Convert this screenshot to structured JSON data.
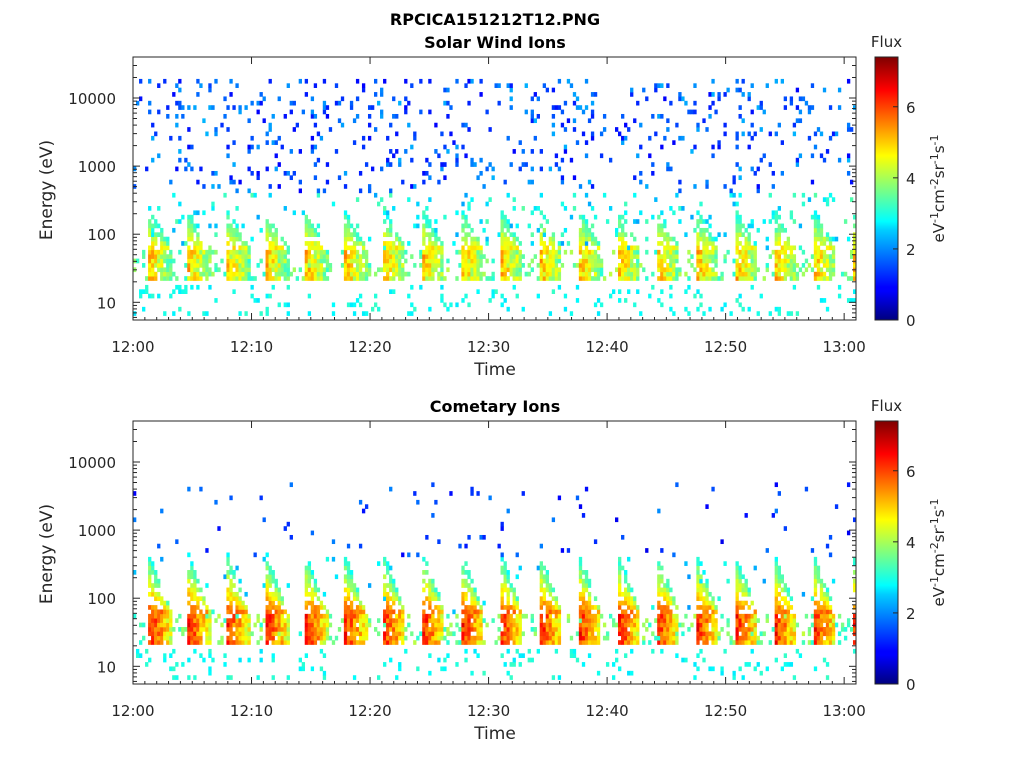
{
  "figure_title": "RPCICA151212T12.PNG",
  "chart_data": [
    {
      "type": "heatmap",
      "title": "Solar Wind Ions",
      "xlabel": "Time",
      "ylabel": "Energy (eV)",
      "x_ticks": [
        "12:00",
        "12:10",
        "12:20",
        "12:30",
        "12:40",
        "12:50",
        "13:00"
      ],
      "x_range_minutes": [
        0,
        61
      ],
      "y_scale": "log",
      "y_ticks": [
        "10",
        "100",
        "1000",
        "10000"
      ],
      "y_range": [
        5.5,
        40000
      ],
      "colorbar": {
        "title": "Flux",
        "label": "eV-1cm-2sr-1s-1",
        "colormap": "jet",
        "range": [
          0,
          7.4
        ],
        "ticks": [
          "0",
          "2",
          "4",
          "6"
        ]
      },
      "pattern": {
        "burst_period_min": 3.3,
        "core_energy_ev": 40,
        "core_flux": 5.0,
        "background_max_ev": 20000,
        "background_flux": 1.5,
        "plume_max_ev": 250
      }
    },
    {
      "type": "heatmap",
      "title": "Cometary Ions",
      "xlabel": "Time",
      "ylabel": "Energy (eV)",
      "x_ticks": [
        "12:00",
        "12:10",
        "12:20",
        "12:30",
        "12:40",
        "12:50",
        "13:00"
      ],
      "x_range_minutes": [
        0,
        61
      ],
      "y_scale": "log",
      "y_ticks": [
        "10",
        "100",
        "1000",
        "10000"
      ],
      "y_range": [
        5.5,
        40000
      ],
      "colorbar": {
        "title": "Flux",
        "label": "eV-1cm-2sr-1s-1",
        "colormap": "jet",
        "range": [
          0,
          7.4
        ],
        "ticks": [
          "0",
          "2",
          "4",
          "6"
        ]
      },
      "pattern": {
        "burst_period_min": 3.3,
        "core_energy_ev": 40,
        "core_flux": 6.2,
        "background_max_ev": 5000,
        "background_flux": 1.3,
        "plume_max_ev": 500
      }
    }
  ]
}
